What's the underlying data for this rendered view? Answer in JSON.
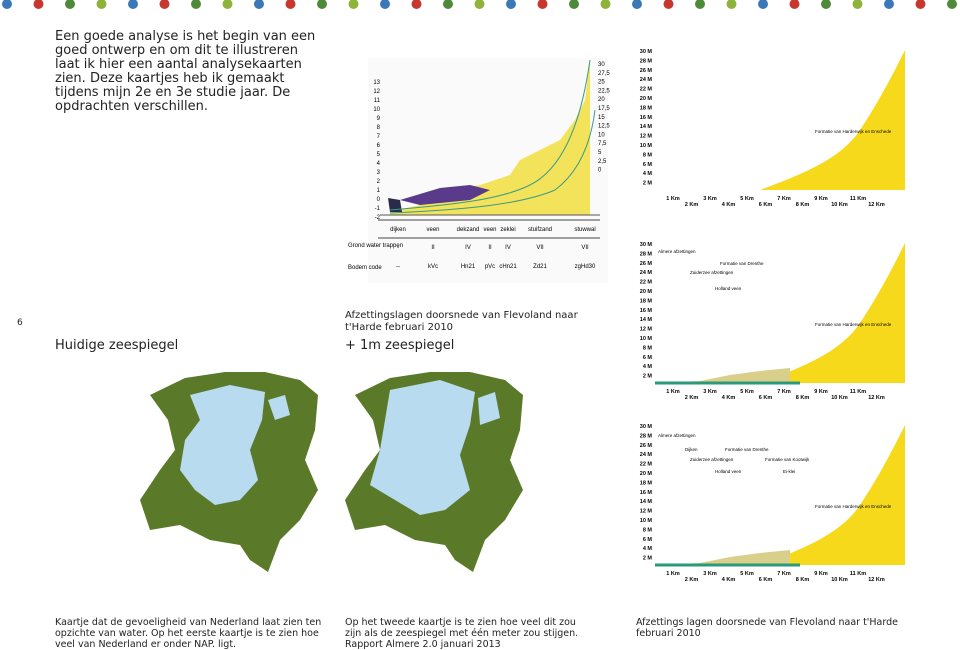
{
  "page_number": "6",
  "intro": "Een goede analyse is het begin van een goed ontwerp en om dit te illustreren laat ik hier een aantal analysekaarten zien. Deze kaartjes heb ik gemaakt tijdens mijn 2e en 3e studie jaar. De opdrachten verschillen.",
  "left": {
    "heading": "Huidige zeespiegel",
    "caption": "Kaartje dat de gevoeligheid van Nederland laat zien ten opzichte van water. Op het eerste kaartje is te zien hoe veel van Nederland er onder NAP. ligt."
  },
  "middle": {
    "title": "Afzettingslagen doorsnede van Flevoland naar t'Harde februari 2010",
    "heading": "+ 1m zeespiegel",
    "caption": "Op het tweede kaartje is te zien hoe veel dit zou zijn als de zeespiegel met één meter zou stijgen.",
    "source": "Rapport Almere 2.0 januari 2013",
    "sketch": {
      "left_axis": [
        "13",
        "12",
        "11",
        "10",
        "9",
        "8",
        "7",
        "6",
        "5",
        "4",
        "3",
        "2",
        "1",
        "0",
        "-1",
        "-2"
      ],
      "right_axis": [
        "30",
        "27,5",
        "25",
        "22,5",
        "20",
        "17,5",
        "15",
        "12,5",
        "10",
        "7,5",
        "5",
        "2,5",
        "0"
      ],
      "layers": [
        "dijken",
        "veen",
        "dekzand",
        "veen",
        "zeklei",
        "stuifzand",
        "stuwwal"
      ],
      "row_labels": [
        "Grond water trappen",
        "Bodem code"
      ],
      "gwt": [
        "-",
        "II",
        "IV",
        "II",
        "IV",
        "VII",
        "VII"
      ],
      "codes": [
        "--",
        "kVc",
        "Hn21",
        "pVc",
        "cHn21",
        "Zd21",
        "zgHd30"
      ]
    }
  },
  "right": {
    "caption": "Afzettings lagen doorsnede van Flevoland naar t'Harde februari 2010",
    "y_labels": [
      "30 M",
      "28 M",
      "26 M",
      "24 M",
      "22 M",
      "20 M",
      "18 M",
      "16 M",
      "14 M",
      "12 M",
      "10 M",
      "8 M",
      "6 M",
      "4 M",
      "2 M"
    ],
    "x_labels": [
      "1 Km",
      "2 Km",
      "3 Km",
      "4 Km",
      "5 Km",
      "6 Km",
      "7 Km",
      "8 Km",
      "9 Km",
      "10 Km",
      "11 Km",
      "12 Km"
    ],
    "profiles": [
      {
        "labels": [
          "Formatie van Harderwijk en Enschede"
        ]
      },
      {
        "labels": [
          "Almere afzettingen",
          "Formatie van Drenthe",
          "Zuiderzee afzettingen",
          "Holland veen",
          "Formatie van Harderwijk en Enschede"
        ]
      },
      {
        "labels": [
          "Almere afzettingen",
          "Dijken",
          "Formatie van Drenthe",
          "Zuiderzee afzettingen",
          "Formatie van Kootwijk",
          "Holland veen",
          "Ei-klei",
          "Formatie van Harderwijk en Enschede"
        ]
      }
    ]
  }
}
